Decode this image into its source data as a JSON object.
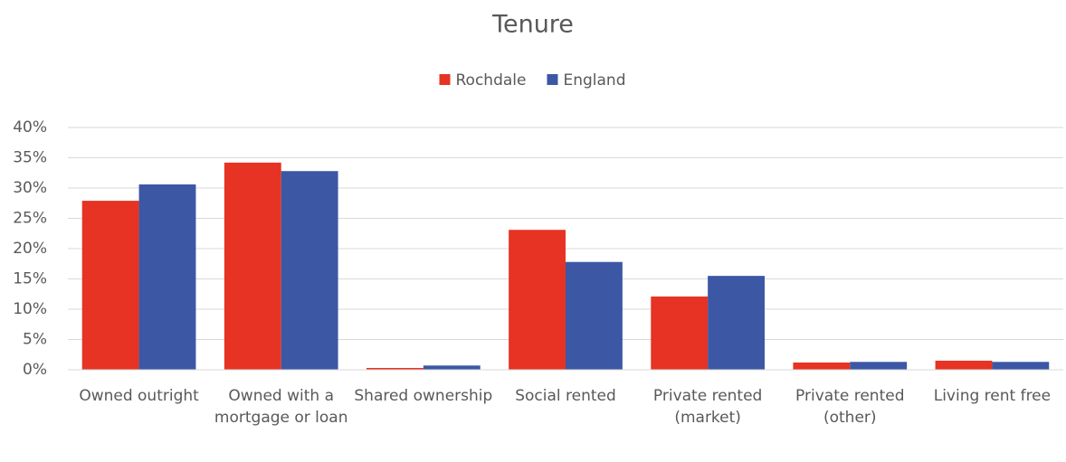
{
  "chart_data": {
    "type": "bar",
    "title": "Tenure",
    "categories": [
      "Owned outright",
      "Owned with a mortgage or loan",
      "Shared ownership",
      "Social rented",
      "Private rented (market)",
      "Private rented (other)",
      "Living rent free"
    ],
    "series": [
      {
        "name": "Rochdale",
        "color": "#e63323",
        "values": [
          27.9,
          34.2,
          0.3,
          23.1,
          12.1,
          1.2,
          1.5
        ]
      },
      {
        "name": "England",
        "color": "#3c57a4",
        "values": [
          30.6,
          32.8,
          0.7,
          17.8,
          15.5,
          1.3,
          1.3
        ]
      }
    ],
    "ylim": [
      0,
      40
    ],
    "yticks": [
      {
        "value": 0,
        "label": "0%"
      },
      {
        "value": 5,
        "label": "5%"
      },
      {
        "value": 10,
        "label": "10%"
      },
      {
        "value": 15,
        "label": "15%"
      },
      {
        "value": 20,
        "label": "20%"
      },
      {
        "value": 25,
        "label": "25%"
      },
      {
        "value": 30,
        "label": "30%"
      },
      {
        "value": 35,
        "label": "35%"
      },
      {
        "value": 40,
        "label": "40%"
      }
    ],
    "grid": true,
    "legend": "top"
  }
}
